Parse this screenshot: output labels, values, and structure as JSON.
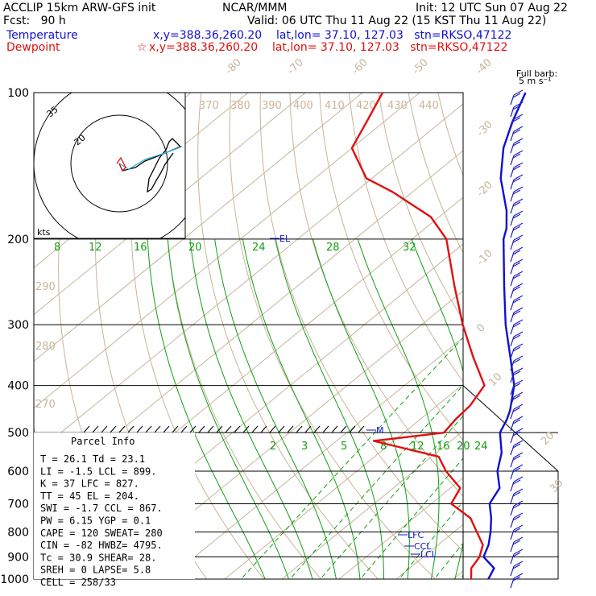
{
  "header": {
    "model": "ACCLIP 15km ARW-GFS init",
    "center": "NCAR/MMM",
    "init": "Init: 12 UTC Sun 07 Aug 22",
    "fcst": "Fcst:   90 h",
    "valid": "Valid: 06 UTC Thu 11 Aug 22 (15 KST Thu 11 Aug 22)",
    "temp_label": "Temperature",
    "temp_loc": "x,y=388.36,260.20    lat,lon= 37.10, 127.03   stn=RKSO,47122",
    "dew_label": "Dewpoint",
    "dew_loc": "x,y=388.36,260.20    lat,lon= 37.10, 127.03   stn=RKSO,47122",
    "dew_star": "☆"
  },
  "colors": {
    "temperature": "#1010d0",
    "dewpoint": "#e01010",
    "isotherm_dryadiabat": "#c8b49a",
    "mixing_ratio": "#10a010",
    "moist_adiabat": "#10a010"
  },
  "barb_legend": [
    "Full barb:",
    "5 m s⁻¹"
  ],
  "hodograph": {
    "ring_labels": [
      "35",
      "20"
    ],
    "kts_label": "kts"
  },
  "chart_data": {
    "type": "line",
    "title": "",
    "xlabel": "",
    "ylabel": "",
    "y_scale": "log-pressure",
    "pressure_ticks": [
      100,
      200,
      300,
      400,
      500,
      600,
      700,
      800,
      900,
      1000
    ],
    "isotherm_labels": [
      "-80",
      "-70",
      "-60",
      "-50",
      "-40",
      "-30",
      "-20",
      "-10",
      "0",
      "10",
      "20",
      "30",
      "40"
    ],
    "theta_labels": [
      "370",
      "380",
      "390",
      "400",
      "410",
      "420",
      "430",
      "440"
    ],
    "theta_side_labels": [
      "290",
      "280",
      "270"
    ],
    "mixing_ratio_labels_upper": [
      "8",
      "12",
      "16",
      "20",
      "24",
      "28",
      "32"
    ],
    "mixing_ratio_labels_lower": [
      "2",
      "3",
      "5",
      "8",
      "12",
      "16",
      "20",
      "24"
    ],
    "series": [
      {
        "name": "Temperature",
        "points": [
          [
            1000,
            26.1
          ],
          [
            950,
            24.8
          ],
          [
            900,
            20.5
          ],
          [
            850,
            18.8
          ],
          [
            800,
            16.4
          ],
          [
            750,
            13.6
          ],
          [
            700,
            10.2
          ],
          [
            650,
            8.6
          ],
          [
            600,
            4.6
          ],
          [
            550,
            1.4
          ],
          [
            500,
            -3.2
          ],
          [
            470,
            -4.8
          ],
          [
            450,
            -6.2
          ],
          [
            400,
            -10.8
          ],
          [
            350,
            -17.5
          ],
          [
            300,
            -25.3
          ],
          [
            250,
            -33.8
          ],
          [
            200,
            -44.0
          ],
          [
            190,
            -45.8
          ],
          [
            175,
            -49.5
          ],
          [
            150,
            -57.5
          ],
          [
            130,
            -63.5
          ],
          [
            115,
            -67.5
          ],
          [
            100,
            -71.5
          ]
        ]
      },
      {
        "name": "Dewpoint",
        "points": [
          [
            1000,
            23.1
          ],
          [
            950,
            20.8
          ],
          [
            900,
            19.8
          ],
          [
            850,
            17.8
          ],
          [
            800,
            14.0
          ],
          [
            750,
            10.0
          ],
          [
            700,
            3.5
          ],
          [
            650,
            1.7
          ],
          [
            600,
            -4.4
          ],
          [
            560,
            -8.8
          ],
          [
            520,
            -23.5
          ],
          [
            500,
            -13.0
          ],
          [
            470,
            -13.8
          ],
          [
            440,
            -14.2
          ],
          [
            400,
            -16.0
          ],
          [
            350,
            -24.0
          ],
          [
            300,
            -32.8
          ],
          [
            250,
            -42.5
          ],
          [
            200,
            -54.0
          ],
          [
            180,
            -61.5
          ],
          [
            160,
            -73.5
          ],
          [
            150,
            -81.0
          ],
          [
            130,
            -90.0
          ],
          [
            115,
            -93.0
          ],
          [
            100,
            -96.5
          ]
        ]
      }
    ],
    "markers": [
      {
        "label": "EL",
        "p": 204
      },
      {
        "label": "M",
        "p": 490
      },
      {
        "label": "LFC",
        "p": 827
      },
      {
        "label": "CCL",
        "p": 867
      },
      {
        "label": "LCL",
        "p": 899
      }
    ],
    "hodo_ticks_label": "kts"
  },
  "parcel_info": {
    "title": "Parcel Info",
    "rows": [
      "T  =    26.1  Td =  23.1",
      "LI =    -1.5  LCL =  899.",
      "K  =     37  LFC =  827.",
      "TT =     45  EL  =  204.",
      "SWI =   -1.7  CCL =  867.",
      "PW =   6.15  YGP =   0.1",
      "CAPE =   120  SWEAT=  280",
      "CIN =    -82  HWBZ= 4795.",
      "Tc =   30.9  SHEAR=  28.",
      "SREH =     0  LAPSE=  5.8",
      "CELL = 258/33"
    ]
  }
}
